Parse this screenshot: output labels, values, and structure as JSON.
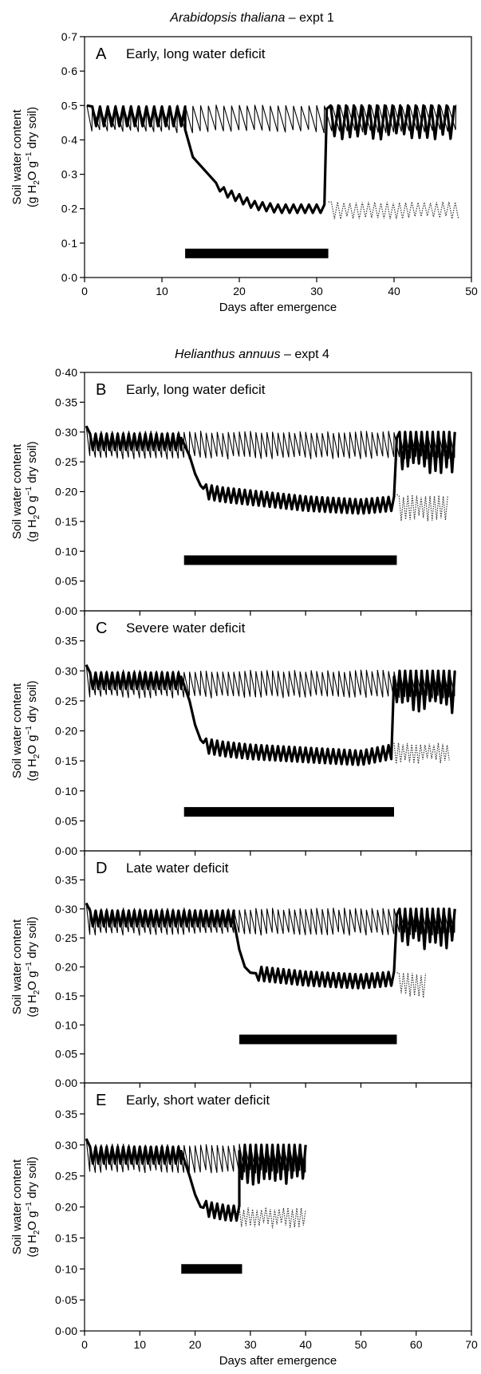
{
  "figure": {
    "species_a": "Arabidopsis thaliana",
    "expt_a": " – expt 1",
    "species_b": "Helianthus annuus",
    "expt_b": " – expt 4"
  },
  "chart_data": [
    {
      "type": "line",
      "panel": "A",
      "title": "Early, long water deficit",
      "ylabel_line1": "Soil water content",
      "ylabel_g": "(g H",
      "ylabel_sub": "2",
      "ylabel_o": "O g",
      "ylabel_sup": "−1",
      "ylabel_end": " dry soil)",
      "xlabel": "Days after emergence",
      "xlim": [
        0,
        50
      ],
      "ylim": [
        0,
        0.7
      ],
      "xticks": [
        0,
        10,
        20,
        30,
        40,
        50
      ],
      "xtick_labels": [
        "0",
        "10",
        "20",
        "30",
        "40",
        "50"
      ],
      "yticks": [
        0,
        0.1,
        0.2,
        0.3,
        0.4,
        0.5,
        0.6,
        0.7
      ],
      "ytick_labels": [
        "0·0",
        "0·1",
        "0·2",
        "0·3",
        "0·4",
        "0·5",
        "0·6",
        "0·7"
      ],
      "control": {
        "start": 0.5,
        "x_end": 48,
        "high": 0.5,
        "low": 0.43,
        "period": 1
      },
      "stressed": {
        "x_end": 48,
        "decline": [
          [
            13,
            0.43
          ],
          [
            14,
            0.35
          ],
          [
            16,
            0.3
          ],
          [
            18,
            0.25
          ],
          [
            20,
            0.23
          ],
          [
            22,
            0.21
          ],
          [
            25,
            0.2
          ],
          [
            28,
            0.2
          ],
          [
            31,
            0.2
          ]
        ],
        "recovery_x": 31.3,
        "maintained_high": 0.22,
        "maintained_low": 0.18
      },
      "bar": {
        "start": 13,
        "end": 31.5,
        "y": 0.07
      },
      "dotted": {
        "x_start": 31.5,
        "x_end": 48.5,
        "high": 0.22,
        "low": 0.17
      }
    },
    {
      "type": "line",
      "panel": "B",
      "title": "Early, long water deficit",
      "ylabel_line1": "Soil water content",
      "ylabel_g": "(g H",
      "ylabel_sub": "2",
      "ylabel_o": "O g",
      "ylabel_sup": "−1",
      "ylabel_end": " dry soil)",
      "xlim": [
        0,
        70
      ],
      "ylim": [
        0,
        0.4
      ],
      "xticks": [
        0,
        10,
        20,
        30,
        40,
        50,
        60,
        70
      ],
      "yticks": [
        0,
        0.05,
        0.1,
        0.15,
        0.2,
        0.25,
        0.3,
        0.35,
        0.4
      ],
      "ytick_labels": [
        "0·00",
        "0·05",
        "0·10",
        "0·15",
        "0·20",
        "0·25",
        "0·30",
        "0·35",
        "0·40"
      ],
      "control": {
        "start": 0.31,
        "x_end": 67,
        "high": 0.3,
        "low": 0.26,
        "period": 1
      },
      "stressed": {
        "x_end": 67,
        "decline": [
          [
            17.5,
            0.29
          ],
          [
            19,
            0.26
          ],
          [
            20,
            0.23
          ],
          [
            21,
            0.21
          ],
          [
            22,
            0.2
          ],
          [
            25,
            0.195
          ],
          [
            30,
            0.19
          ],
          [
            40,
            0.18
          ],
          [
            50,
            0.175
          ],
          [
            56,
            0.18
          ]
        ],
        "recovery_x": 56.5,
        "maintained_high": 0.2,
        "maintained_low": 0.16
      },
      "bar": {
        "start": 18,
        "end": 56.5,
        "y": 0.085
      },
      "dotted": {
        "x_start": 56.5,
        "x_end": 66,
        "high": 0.195,
        "low": 0.15
      }
    },
    {
      "type": "line",
      "panel": "C",
      "title": "Severe water deficit",
      "ylabel_line1": "Soil water content",
      "ylabel_g": "(g H",
      "ylabel_sub": "2",
      "ylabel_o": "O g",
      "ylabel_sup": "−1",
      "ylabel_end": " dry soil)",
      "xlim": [
        0,
        70
      ],
      "ylim": [
        0,
        0.4
      ],
      "xticks": [
        0,
        10,
        20,
        30,
        40,
        50,
        60,
        70
      ],
      "yticks": [
        0,
        0.05,
        0.1,
        0.15,
        0.2,
        0.25,
        0.3,
        0.35
      ],
      "ytick_labels": [
        "0·00",
        "0·05",
        "0·10",
        "0·15",
        "0·20",
        "0·25",
        "0·30",
        "0·35"
      ],
      "control": {
        "start": 0.31,
        "x_end": 67,
        "high": 0.3,
        "low": 0.26,
        "period": 1
      },
      "stressed": {
        "x_end": 67,
        "decline": [
          [
            17.5,
            0.29
          ],
          [
            19,
            0.25
          ],
          [
            20,
            0.21
          ],
          [
            21,
            0.185
          ],
          [
            22,
            0.175
          ],
          [
            25,
            0.17
          ],
          [
            30,
            0.165
          ],
          [
            40,
            0.16
          ],
          [
            50,
            0.155
          ],
          [
            55.5,
            0.165
          ]
        ],
        "recovery_x": 56,
        "maintained_high": 0.18,
        "maintained_low": 0.14
      },
      "bar": {
        "start": 18,
        "end": 56,
        "y": 0.065
      },
      "dotted": {
        "x_start": 56,
        "x_end": 66,
        "high": 0.18,
        "low": 0.145
      }
    },
    {
      "type": "line",
      "panel": "D",
      "title": "Late water deficit",
      "ylabel_line1": "Soil water content",
      "ylabel_g": "(g H",
      "ylabel_sub": "2",
      "ylabel_o": "O g",
      "ylabel_sup": "−1",
      "ylabel_end": " dry soil)",
      "xlim": [
        0,
        70
      ],
      "ylim": [
        0,
        0.4
      ],
      "xticks": [
        0,
        10,
        20,
        30,
        40,
        50,
        60,
        70
      ],
      "yticks": [
        0,
        0.05,
        0.1,
        0.15,
        0.2,
        0.25,
        0.3,
        0.35
      ],
      "ytick_labels": [
        "0·00",
        "0·05",
        "0·10",
        "0·15",
        "0·20",
        "0·25",
        "0·30",
        "0·35"
      ],
      "control": {
        "start": 0.31,
        "x_end": 67,
        "high": 0.3,
        "low": 0.26,
        "period": 1
      },
      "stressed": {
        "x_end": 67,
        "decline": [
          [
            27,
            0.28
          ],
          [
            28,
            0.23
          ],
          [
            29,
            0.2
          ],
          [
            30,
            0.19
          ],
          [
            35,
            0.185
          ],
          [
            40,
            0.18
          ],
          [
            50,
            0.175
          ],
          [
            56,
            0.18
          ]
        ],
        "recovery_x": 56.5,
        "maintained_high": 0.2,
        "maintained_low": 0.155
      },
      "bar": {
        "start": 28,
        "end": 56.5,
        "y": 0.075
      },
      "dotted": {
        "x_start": 56.5,
        "x_end": 62,
        "high": 0.19,
        "low": 0.145
      }
    },
    {
      "type": "line",
      "panel": "E",
      "title": "Early, short water deficit",
      "ylabel_line1": "Soil water content",
      "ylabel_g": "(g H",
      "ylabel_sub": "2",
      "ylabel_o": "O g",
      "ylabel_sup": "−1",
      "ylabel_end": " dry soil)",
      "xlabel": "Days after emergence",
      "xlim": [
        0,
        70
      ],
      "ylim": [
        0,
        0.4
      ],
      "xticks": [
        0,
        10,
        20,
        30,
        40,
        50,
        60,
        70
      ],
      "xtick_labels": [
        "0",
        "10",
        "20",
        "30",
        "40",
        "50",
        "60",
        "70"
      ],
      "yticks": [
        0,
        0.05,
        0.1,
        0.15,
        0.2,
        0.25,
        0.3,
        0.35
      ],
      "ytick_labels": [
        "0·00",
        "0·05",
        "0·10",
        "0·15",
        "0·20",
        "0·25",
        "0·30",
        "0·35"
      ],
      "control": {
        "start": 0.31,
        "x_end": 40,
        "high": 0.3,
        "low": 0.26,
        "period": 1
      },
      "stressed": {
        "x_end": 40,
        "decline": [
          [
            17.5,
            0.29
          ],
          [
            19,
            0.25
          ],
          [
            20,
            0.22
          ],
          [
            21,
            0.2
          ],
          [
            23,
            0.195
          ],
          [
            26,
            0.19
          ],
          [
            28,
            0.19
          ]
        ],
        "recovery_x": 28,
        "maintained_high": 0.2,
        "maintained_low": 0.17
      },
      "bar": {
        "start": 17.5,
        "end": 28.5,
        "y": 0.1
      },
      "dotted": {
        "x_start": 28,
        "x_end": 40,
        "high": 0.2,
        "low": 0.165
      }
    }
  ]
}
